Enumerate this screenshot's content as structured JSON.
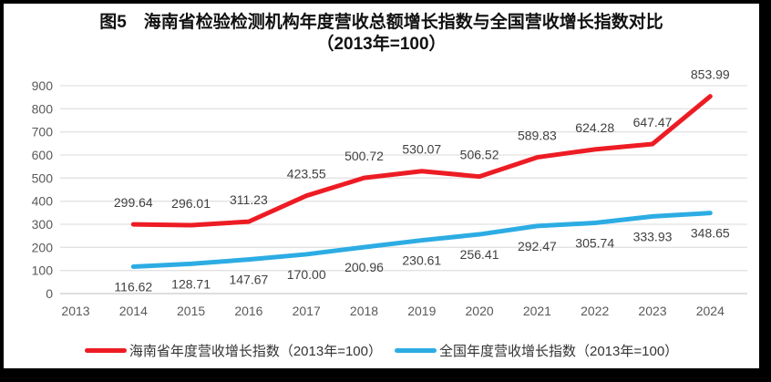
{
  "chart_data": {
    "type": "line",
    "title": "图5　海南省检验检测机构年度营收总额增长指数与全国营收增长指数对比",
    "subtitle": "（2013年=100）",
    "categories": [
      "2013",
      "2014",
      "2015",
      "2016",
      "2017",
      "2018",
      "2019",
      "2020",
      "2021",
      "2022",
      "2023",
      "2024"
    ],
    "xlabel": "",
    "ylabel": "",
    "ylim": [
      0,
      900
    ],
    "ytick_step": 100,
    "grid": true,
    "legend_position": "bottom",
    "label_decimals": 2,
    "series": [
      {
        "name": "海南省年度营收增长指数（2013年=100）",
        "color": "#ed1c24",
        "label_position": "above",
        "values": [
          null,
          299.64,
          296.01,
          311.23,
          423.55,
          500.72,
          530.07,
          506.52,
          589.83,
          624.28,
          647.47,
          853.99
        ]
      },
      {
        "name": "全国年度营收增长指数（2013年=100）",
        "color": "#2cace3",
        "label_position": "below",
        "values": [
          null,
          116.62,
          128.71,
          147.67,
          170.0,
          200.96,
          230.61,
          256.41,
          292.47,
          305.74,
          333.93,
          348.65
        ]
      }
    ]
  }
}
